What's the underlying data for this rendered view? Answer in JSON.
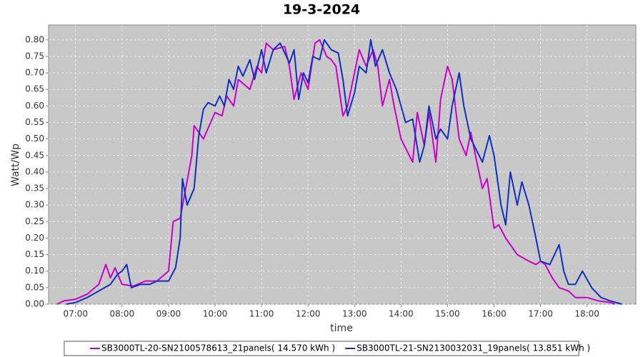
{
  "chart_data": {
    "type": "line",
    "title": "19-3-2024",
    "x_label": "time",
    "y_label": "Watt/Wp",
    "xlim": [
      6.42,
      19.05
    ],
    "xticks": [
      {
        "value": 7,
        "label": "07:00"
      },
      {
        "value": 8,
        "label": "08:00"
      },
      {
        "value": 9,
        "label": "09:00"
      },
      {
        "value": 10,
        "label": "10:00"
      },
      {
        "value": 11,
        "label": "11:00"
      },
      {
        "value": 12,
        "label": "12:00"
      },
      {
        "value": 13,
        "label": "13:00"
      },
      {
        "value": 14,
        "label": "14:00"
      },
      {
        "value": 15,
        "label": "15:00"
      },
      {
        "value": 16,
        "label": "16:00"
      },
      {
        "value": 17,
        "label": "17:00"
      },
      {
        "value": 18,
        "label": "18:00"
      }
    ],
    "ylim": [
      0,
      0.845
    ],
    "yticks": [
      {
        "value": 0,
        "label": "0.00"
      },
      {
        "value": 0.05,
        "label": "0.05"
      },
      {
        "value": 0.1,
        "label": "0.10"
      },
      {
        "value": 0.15,
        "label": "0.15"
      },
      {
        "value": 0.2,
        "label": "0.20"
      },
      {
        "value": 0.25,
        "label": "0.25"
      },
      {
        "value": 0.3,
        "label": "0.30"
      },
      {
        "value": 0.35,
        "label": "0.35"
      },
      {
        "value": 0.4,
        "label": "0.40"
      },
      {
        "value": 0.45,
        "label": "0.45"
      },
      {
        "value": 0.5,
        "label": "0.50"
      },
      {
        "value": 0.55,
        "label": "0.55"
      },
      {
        "value": 0.6,
        "label": "0.60"
      },
      {
        "value": 0.65,
        "label": "0.65"
      },
      {
        "value": 0.7,
        "label": "0.70"
      },
      {
        "value": 0.75,
        "label": "0.75"
      },
      {
        "value": 0.8,
        "label": "0.80"
      }
    ],
    "grid": true,
    "legend": "bottom",
    "series": [
      {
        "name": "SB3000TL-20-SN2100578613_21panels( 14.570 kWh )",
        "color": "#cc00cc",
        "x": [
          6.6,
          6.75,
          7.0,
          7.25,
          7.5,
          7.65,
          7.75,
          7.85,
          8.0,
          8.25,
          8.5,
          8.75,
          9.0,
          9.1,
          9.25,
          9.5,
          9.55,
          9.75,
          10.0,
          10.15,
          10.25,
          10.4,
          10.5,
          10.75,
          10.9,
          11.0,
          11.1,
          11.25,
          11.5,
          11.6,
          11.7,
          11.85,
          12.0,
          12.15,
          12.25,
          12.4,
          12.5,
          12.6,
          12.75,
          12.85,
          13.0,
          13.1,
          13.25,
          13.4,
          13.5,
          13.6,
          13.75,
          13.85,
          14.0,
          14.25,
          14.35,
          14.5,
          14.6,
          14.75,
          14.85,
          15.0,
          15.1,
          15.25,
          15.4,
          15.5,
          15.6,
          15.75,
          15.85,
          16.0,
          16.1,
          16.25,
          16.5,
          16.75,
          16.9,
          17.0,
          17.1,
          17.25,
          17.4,
          17.6,
          17.75,
          18.0,
          18.25,
          18.5,
          18.6
        ],
        "values": [
          0,
          0.01,
          0.015,
          0.03,
          0.06,
          0.12,
          0.08,
          0.11,
          0.06,
          0.055,
          0.07,
          0.07,
          0.1,
          0.25,
          0.26,
          0.45,
          0.54,
          0.5,
          0.58,
          0.57,
          0.63,
          0.6,
          0.68,
          0.65,
          0.72,
          0.7,
          0.79,
          0.77,
          0.78,
          0.72,
          0.62,
          0.7,
          0.65,
          0.79,
          0.8,
          0.75,
          0.74,
          0.72,
          0.57,
          0.6,
          0.7,
          0.77,
          0.72,
          0.77,
          0.72,
          0.6,
          0.68,
          0.6,
          0.5,
          0.43,
          0.58,
          0.48,
          0.58,
          0.43,
          0.62,
          0.72,
          0.68,
          0.5,
          0.45,
          0.52,
          0.45,
          0.35,
          0.38,
          0.23,
          0.24,
          0.2,
          0.15,
          0.13,
          0.12,
          0.13,
          0.12,
          0.08,
          0.05,
          0.04,
          0.02,
          0.02,
          0.01,
          0.005,
          0
        ]
      },
      {
        "name": "SB3000TL-21-SN2130032031_19panels( 13.851 kWh )",
        "color": "#1030c0",
        "x": [
          6.8,
          7.0,
          7.25,
          7.5,
          7.75,
          7.9,
          8.0,
          8.1,
          8.2,
          8.4,
          8.6,
          8.75,
          9.0,
          9.15,
          9.25,
          9.3,
          9.4,
          9.55,
          9.65,
          9.75,
          9.85,
          10.0,
          10.1,
          10.2,
          10.3,
          10.4,
          10.5,
          10.6,
          10.75,
          10.85,
          11.0,
          11.1,
          11.25,
          11.4,
          11.6,
          11.7,
          11.8,
          11.9,
          12.0,
          12.1,
          12.25,
          12.35,
          12.5,
          12.65,
          12.75,
          12.85,
          13.0,
          13.1,
          13.25,
          13.35,
          13.45,
          13.6,
          13.75,
          13.9,
          14.0,
          14.1,
          14.25,
          14.4,
          14.5,
          14.6,
          14.75,
          14.85,
          15.0,
          15.1,
          15.25,
          15.35,
          15.5,
          15.75,
          15.9,
          16.0,
          16.15,
          16.25,
          16.35,
          16.5,
          16.6,
          16.75,
          16.9,
          17.0,
          17.2,
          17.4,
          17.5,
          17.6,
          17.75,
          17.9,
          18.1,
          18.3,
          18.5,
          18.75
        ],
        "values": [
          0,
          0.005,
          0.02,
          0.04,
          0.06,
          0.09,
          0.1,
          0.12,
          0.05,
          0.06,
          0.06,
          0.07,
          0.07,
          0.11,
          0.2,
          0.38,
          0.3,
          0.35,
          0.51,
          0.59,
          0.61,
          0.6,
          0.63,
          0.6,
          0.68,
          0.65,
          0.72,
          0.69,
          0.74,
          0.68,
          0.77,
          0.7,
          0.77,
          0.79,
          0.73,
          0.77,
          0.62,
          0.7,
          0.67,
          0.75,
          0.74,
          0.8,
          0.77,
          0.76,
          0.68,
          0.57,
          0.64,
          0.72,
          0.7,
          0.8,
          0.72,
          0.77,
          0.7,
          0.65,
          0.6,
          0.55,
          0.56,
          0.43,
          0.48,
          0.6,
          0.5,
          0.53,
          0.5,
          0.6,
          0.7,
          0.6,
          0.5,
          0.43,
          0.51,
          0.45,
          0.3,
          0.24,
          0.4,
          0.3,
          0.37,
          0.3,
          0.2,
          0.13,
          0.12,
          0.18,
          0.1,
          0.06,
          0.06,
          0.1,
          0.05,
          0.02,
          0.01,
          0
        ]
      }
    ]
  }
}
